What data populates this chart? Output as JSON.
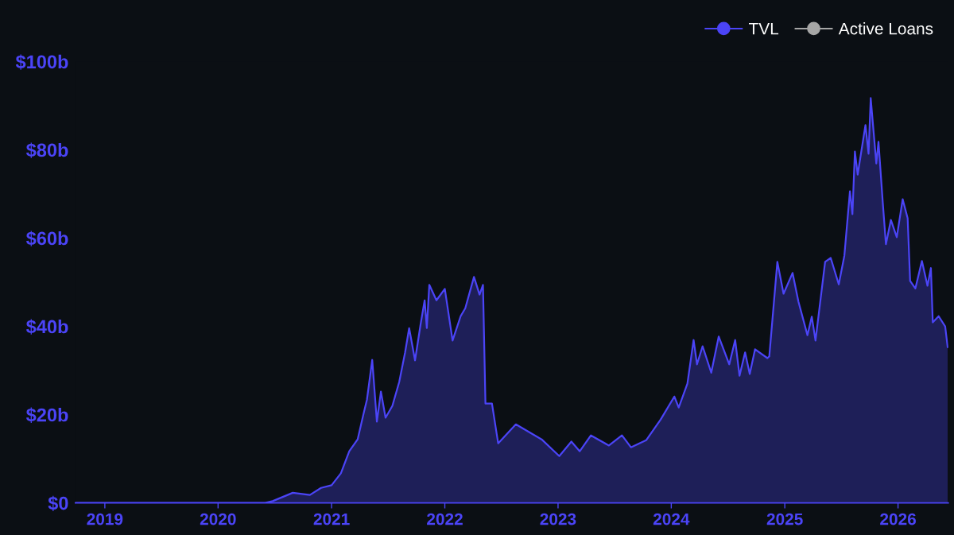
{
  "chart_data": {
    "type": "area",
    "legend": "top right",
    "x": [
      "2018-09-28",
      "2020-06-01",
      "2020-06-25",
      "2020-08-29",
      "2020-10-23",
      "2020-11-28",
      "2021-01-01",
      "2021-01-31",
      "2021-02-27",
      "2021-03-26",
      "2021-04-14",
      "2021-04-25",
      "2021-05-12",
      "2021-05-27",
      "2021-06-09",
      "2021-06-24",
      "2021-07-16",
      "2021-08-07",
      "2021-08-26",
      "2021-09-08",
      "2021-09-27",
      "2021-10-15",
      "2021-10-28",
      "2021-11-04",
      "2021-11-12",
      "2021-12-05",
      "2022-01-01",
      "2022-01-26",
      "2022-02-21",
      "2022-03-08",
      "2022-04-05",
      "2022-04-23",
      "2022-05-04",
      "2022-05-12",
      "2022-06-02",
      "2022-06-22",
      "2022-08-18",
      "2022-11-09",
      "2023-01-05",
      "2023-02-13",
      "2023-03-12",
      "2023-04-17",
      "2023-06-14",
      "2023-07-26",
      "2023-08-24",
      "2023-10-12",
      "2023-11-28",
      "2024-01-11",
      "2024-01-25",
      "2024-02-22",
      "2024-03-13",
      "2024-03-24",
      "2024-04-11",
      "2024-05-09",
      "2024-06-02",
      "2024-07-06",
      "2024-07-25",
      "2024-08-08",
      "2024-08-26",
      "2024-09-10",
      "2024-09-27",
      "2024-11-06",
      "2024-11-12",
      "2024-12-08",
      "2024-12-28",
      "2025-01-26",
      "2025-02-14",
      "2025-03-15",
      "2025-03-29",
      "2025-04-10",
      "2025-05-11",
      "2025-05-29",
      "2025-06-24",
      "2025-07-12",
      "2025-07-30",
      "2025-08-07",
      "2025-08-15",
      "2025-08-24",
      "2025-09-18",
      "2025-09-28",
      "2025-10-05",
      "2025-10-23",
      "2025-10-30",
      "2025-11-13",
      "2025-11-23",
      "2025-12-09",
      "2025-12-28",
      "2026-01-16",
      "2026-02-01",
      "2026-02-09",
      "2026-02-26",
      "2026-03-19",
      "2026-04-06",
      "2026-04-17",
      "2026-04-23",
      "2026-05-12",
      "2026-06-02",
      "2026-06-10"
    ],
    "series": [
      {
        "name": "TVL",
        "color": "#4b44f7",
        "values": [
          0,
          0,
          0.4,
          2.3,
          1.8,
          3.4,
          4.0,
          6.7,
          11.7,
          14.4,
          20.2,
          23.4,
          32.4,
          18.4,
          25.2,
          19.3,
          22.0,
          27.4,
          34.1,
          39.6,
          32.3,
          40.5,
          45.9,
          39.6,
          49.4,
          45.9,
          48.5,
          36.8,
          42.3,
          44.1,
          51.2,
          47.2,
          49.4,
          22.5,
          22.5,
          13.5,
          17.8,
          14.4,
          10.6,
          13.9,
          11.7,
          15.3,
          13.0,
          15.3,
          12.6,
          14.2,
          18.9,
          24.1,
          21.6,
          27.0,
          36.9,
          31.4,
          35.5,
          29.5,
          37.7,
          31.4,
          36.9,
          28.8,
          34.1,
          29.2,
          34.8,
          32.8,
          33.2,
          54.6,
          47.4,
          52.1,
          45.6,
          38.0,
          42.2,
          36.8,
          54.6,
          55.5,
          49.5,
          56.0,
          70.6,
          65.4,
          79.6,
          74.4,
          85.6,
          79.1,
          91.7,
          76.9,
          81.8,
          67.9,
          58.6,
          64.1,
          60.2,
          68.8,
          64.5,
          50.3,
          48.6,
          54.8,
          49.2,
          53.2,
          40.9,
          42.3,
          40.0,
          35.3
        ]
      },
      {
        "name": "Active Loans",
        "color": "#a6a6a6",
        "values": [
          null,
          null,
          null,
          null,
          null,
          null,
          null,
          null,
          null,
          null,
          null,
          null,
          null,
          null,
          null,
          null,
          null,
          null,
          null,
          null,
          null,
          null,
          null,
          null,
          null,
          null,
          null,
          null,
          null,
          null,
          null,
          null,
          null,
          null,
          null,
          null,
          null,
          null,
          null,
          null,
          null,
          null,
          null,
          null,
          null,
          null,
          null,
          null,
          null,
          null,
          null,
          null,
          null,
          null,
          null,
          null,
          null,
          null,
          null,
          null,
          null,
          null,
          null,
          null,
          null,
          null,
          null,
          null,
          null,
          null,
          null,
          null,
          null,
          null,
          null,
          null,
          null,
          null,
          null,
          null,
          null,
          null,
          null,
          null,
          null,
          null,
          null,
          null,
          null,
          null,
          null,
          null,
          null,
          null,
          null,
          null,
          null,
          null
        ]
      }
    ],
    "xlim": [
      "2018-09-28",
      "2026-06-12"
    ],
    "xticks": [
      {
        "value": "2019",
        "label": "2019"
      },
      {
        "value": "2020",
        "label": "2020"
      },
      {
        "value": "2021",
        "label": "2021"
      },
      {
        "value": "2022",
        "label": "2022"
      },
      {
        "value": "2023",
        "label": "2023"
      },
      {
        "value": "2024",
        "label": "2024"
      },
      {
        "value": "2025",
        "label": "2025"
      },
      {
        "value": "2026",
        "label": "2026"
      }
    ],
    "ylim": [
      0,
      100
    ],
    "yticks": [
      {
        "value": 0,
        "label": "$0"
      },
      {
        "value": 20,
        "label": "$20b"
      },
      {
        "value": 40,
        "label": "$40b"
      },
      {
        "value": 60,
        "label": "$60b"
      },
      {
        "value": 80,
        "label": "$80b"
      },
      {
        "value": 100,
        "label": "$100b"
      }
    ]
  }
}
